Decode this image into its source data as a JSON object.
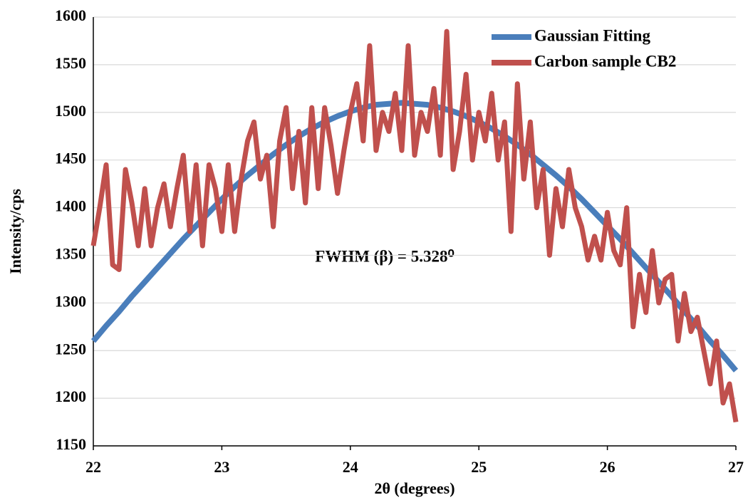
{
  "chart_data": {
    "type": "line",
    "xlabel": "2θ (degrees)",
    "ylabel": "Intensity/cps",
    "annotation": "FWHM (β) = 5.328⁰",
    "xlim": [
      22,
      27
    ],
    "xticks": [
      22,
      23,
      24,
      25,
      26,
      27
    ],
    "ylim": [
      1150,
      1600
    ],
    "yticks": [
      1150,
      1200,
      1250,
      1300,
      1350,
      1400,
      1450,
      1500,
      1550,
      1600
    ],
    "grid": true,
    "legend": "upper right",
    "series": [
      {
        "name": "Gaussian Fitting",
        "color": "#4a7ebb",
        "x": [
          22.0,
          22.1,
          22.2,
          22.3,
          22.4,
          22.5,
          22.6,
          22.7,
          22.8,
          22.9,
          23.0,
          23.1,
          23.2,
          23.3,
          23.4,
          23.5,
          23.6,
          23.7,
          23.8,
          23.9,
          24.0,
          24.1,
          24.2,
          24.3,
          24.4,
          24.5,
          24.6,
          24.7,
          24.8,
          24.9,
          25.0,
          25.1,
          25.2,
          25.3,
          25.4,
          25.5,
          25.6,
          25.7,
          25.8,
          25.9,
          26.0,
          26.1,
          26.2,
          26.3,
          26.4,
          26.5,
          26.6,
          26.7,
          26.8,
          26.9,
          27.0
        ],
        "values": [
          1260,
          1276,
          1291,
          1307,
          1322,
          1337,
          1352,
          1367,
          1381,
          1395,
          1409,
          1422,
          1434,
          1445,
          1456,
          1466,
          1475,
          1483,
          1490,
          1496,
          1501,
          1505,
          1508,
          1509,
          1510,
          1509,
          1508,
          1505,
          1501,
          1496,
          1490,
          1483,
          1475,
          1466,
          1456,
          1445,
          1434,
          1422,
          1409,
          1395,
          1381,
          1367,
          1352,
          1337,
          1322,
          1307,
          1291,
          1276,
          1260,
          1245,
          1229
        ]
      },
      {
        "name": "Carbon sample CB2",
        "color": "#c0504d",
        "x": [
          22.0,
          22.05,
          22.1,
          22.15,
          22.2,
          22.25,
          22.3,
          22.35,
          22.4,
          22.45,
          22.5,
          22.55,
          22.6,
          22.65,
          22.7,
          22.75,
          22.8,
          22.85,
          22.9,
          22.95,
          23.0,
          23.05,
          23.1,
          23.15,
          23.2,
          23.25,
          23.3,
          23.35,
          23.4,
          23.45,
          23.5,
          23.55,
          23.6,
          23.65,
          23.7,
          23.75,
          23.8,
          23.85,
          23.9,
          23.95,
          24.0,
          24.05,
          24.1,
          24.15,
          24.2,
          24.25,
          24.3,
          24.35,
          24.4,
          24.45,
          24.5,
          24.55,
          24.6,
          24.65,
          24.7,
          24.75,
          24.8,
          24.85,
          24.9,
          24.95,
          25.0,
          25.05,
          25.1,
          25.15,
          25.2,
          25.25,
          25.3,
          25.35,
          25.4,
          25.45,
          25.5,
          25.55,
          25.6,
          25.65,
          25.7,
          25.75,
          25.8,
          25.85,
          25.9,
          25.95,
          26.0,
          26.05,
          26.1,
          26.15,
          26.2,
          26.25,
          26.3,
          26.35,
          26.4,
          26.45,
          26.5,
          26.55,
          26.6,
          26.65,
          26.7,
          26.75,
          26.8,
          26.85,
          26.9,
          26.95,
          27.0
        ],
        "values": [
          1360,
          1400,
          1445,
          1340,
          1335,
          1440,
          1405,
          1360,
          1420,
          1360,
          1400,
          1425,
          1380,
          1420,
          1455,
          1375,
          1445,
          1360,
          1445,
          1420,
          1375,
          1445,
          1375,
          1430,
          1470,
          1490,
          1430,
          1455,
          1380,
          1470,
          1505,
          1420,
          1480,
          1405,
          1505,
          1420,
          1505,
          1465,
          1415,
          1460,
          1500,
          1530,
          1470,
          1570,
          1460,
          1500,
          1480,
          1520,
          1460,
          1570,
          1455,
          1500,
          1480,
          1525,
          1455,
          1585,
          1440,
          1480,
          1540,
          1450,
          1500,
          1470,
          1520,
          1450,
          1490,
          1375,
          1530,
          1430,
          1490,
          1400,
          1440,
          1350,
          1420,
          1380,
          1440,
          1400,
          1380,
          1345,
          1370,
          1345,
          1395,
          1355,
          1340,
          1400,
          1275,
          1330,
          1290,
          1355,
          1300,
          1325,
          1330,
          1260,
          1310,
          1270,
          1285,
          1250,
          1215,
          1260,
          1195,
          1215,
          1175
        ]
      }
    ]
  }
}
